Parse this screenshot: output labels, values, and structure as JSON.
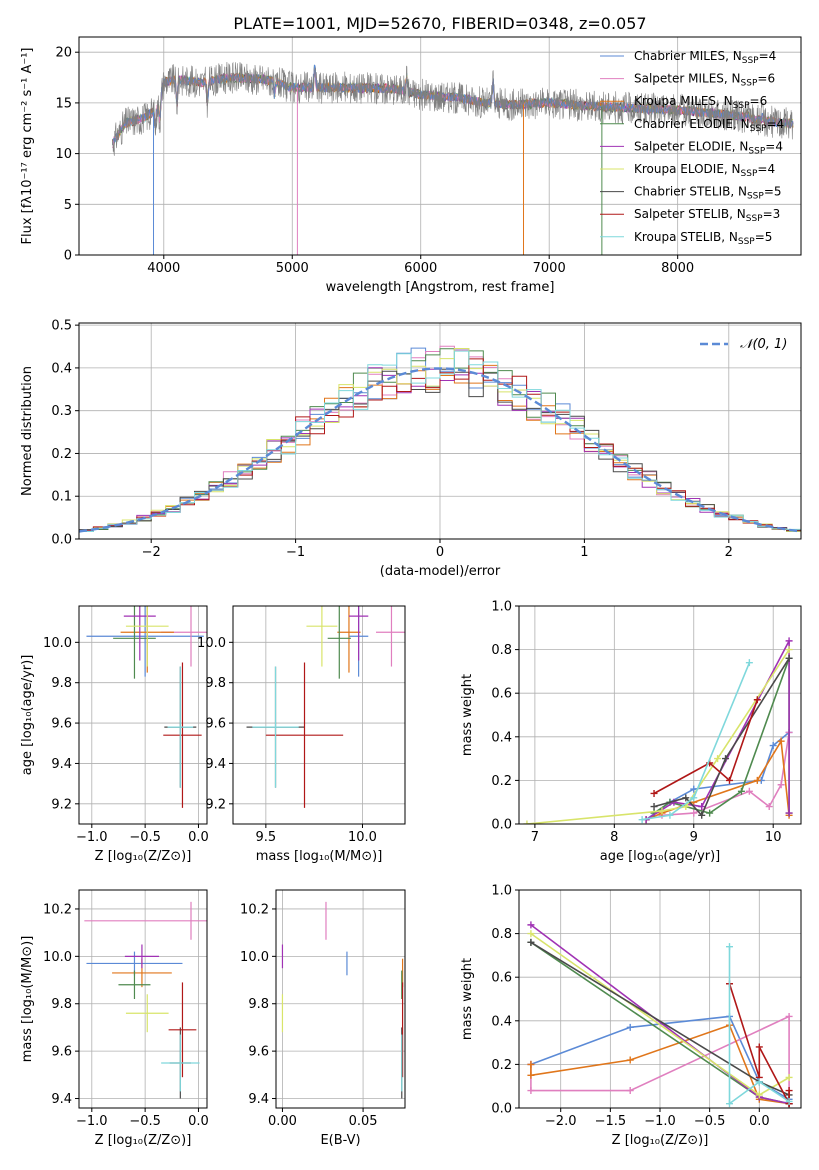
{
  "colors": [
    "#5b8ad6",
    "#e07fbf",
    "#e0761b",
    "#4f8a4f",
    "#a032b4",
    "#d8e46a",
    "#4a4a4a",
    "#b01818",
    "#7fd8dc"
  ],
  "spec_main_color": "#7f7f7f",
  "title": "PLATE=1001, MJD=52670, FIBERID=0348, z=0.057",
  "chart_data": [
    {
      "id": "spectrum",
      "type": "line",
      "xlabel": "wavelength [Angstrom, rest frame]",
      "ylabel": "Flux [fλ10⁻¹⁷ erg cm⁻² s⁻¹ A⁻¹]",
      "xlim": [
        3340,
        8960
      ],
      "ylim": [
        0,
        21.5
      ],
      "xticks": [
        4000,
        5000,
        6000,
        7000,
        8000
      ],
      "yticks": [
        0,
        5,
        10,
        15,
        20
      ],
      "legend_position": "top-right",
      "series": [
        {
          "name": "Chabrier MILES, N",
          "sub": "SSP",
          "suffix": "=4"
        },
        {
          "name": "Salpeter MILES, N",
          "sub": "SSP",
          "suffix": "=6"
        },
        {
          "name": "Kroupa MILES, N",
          "sub": "SSP",
          "suffix": "=6"
        },
        {
          "name": "Chabrier ELODIE, N",
          "sub": "SSP",
          "suffix": "=4"
        },
        {
          "name": "Salpeter ELODIE, N",
          "sub": "SSP",
          "suffix": "=4"
        },
        {
          "name": "Kroupa ELODIE, N",
          "sub": "SSP",
          "suffix": "=4"
        },
        {
          "name": "Chabrier STELIB, N",
          "sub": "SSP",
          "suffix": "=5"
        },
        {
          "name": "Salpeter STELIB, N",
          "sub": "SSP",
          "suffix": "=3"
        },
        {
          "name": "Kroupa STELIB, N",
          "sub": "SSP",
          "suffix": "=5"
        }
      ],
      "continuum": [
        [
          3600,
          11
        ],
        [
          3700,
          13
        ],
        [
          3850,
          13.5
        ],
        [
          3950,
          14.5
        ],
        [
          4000,
          17
        ],
        [
          4100,
          17.3
        ],
        [
          4300,
          17
        ],
        [
          4500,
          17.5
        ],
        [
          4800,
          17.3
        ],
        [
          5000,
          16.5
        ],
        [
          5200,
          16.5
        ],
        [
          5500,
          16.5
        ],
        [
          5800,
          16.4
        ],
        [
          6000,
          15.8
        ],
        [
          6300,
          15.5
        ],
        [
          6500,
          15
        ],
        [
          6700,
          14.8
        ],
        [
          7000,
          15
        ],
        [
          7300,
          14.7
        ],
        [
          7600,
          14.5
        ],
        [
          8000,
          14.3
        ],
        [
          8400,
          13.8
        ],
        [
          8800,
          13
        ]
      ],
      "features": [
        [
          3934,
          8.5
        ],
        [
          3969,
          7.8
        ],
        [
          4102,
          7.5
        ],
        [
          4340,
          8
        ],
        [
          4861,
          9
        ],
        [
          5175,
          14
        ],
        [
          5892,
          13
        ],
        [
          6563,
          14.2
        ],
        [
          8498,
          11
        ],
        [
          8542,
          11.8
        ],
        [
          8662,
          11.5
        ]
      ],
      "spikes": [
        [
          3920,
          0
        ],
        [
          5040,
          0
        ],
        [
          6800,
          0
        ],
        [
          7410,
          0
        ]
      ]
    },
    {
      "id": "residuals",
      "type": "line",
      "xlabel": "(data-model)/error",
      "ylabel": "Normed distribution",
      "xlim": [
        -2.5,
        2.5
      ],
      "ylim": [
        0,
        0.505
      ],
      "xticks": [
        -2,
        -1,
        0,
        1,
        2
      ],
      "xtick_labels": [
        "−2",
        "−1",
        "0",
        "1",
        "2"
      ],
      "yticks": [
        0,
        0.1,
        0.2,
        0.3,
        0.4,
        0.5
      ],
      "ytick_labels": [
        "0.0",
        "0.1",
        "0.2",
        "0.3",
        "0.4",
        "0.5"
      ],
      "legend_position": "top-right",
      "legend_label": "𝒩(0, 1)",
      "curve": {
        "mu": 0,
        "sigma": 1,
        "style": "dashed"
      },
      "bin_width": 0.1,
      "hist_seed": 7
    },
    {
      "id": "age-vs-Z",
      "type": "scatter",
      "xlabel": "Z [log₁₀(Z/Z⊙)]",
      "ylabel": "age  [log₁₀(age/yr)]",
      "xlim": [
        -1.12,
        0.08
      ],
      "ylim": [
        9.1,
        10.18
      ],
      "xticks": [
        -1.0,
        -0.5,
        0.0
      ],
      "xtick_labels": [
        "−1.0",
        "−0.5",
        "0.0"
      ],
      "yticks": [
        9.2,
        9.4,
        9.6,
        9.8,
        10.0
      ],
      "ytick_labels": [
        "9.2",
        "9.4",
        "9.6",
        "9.8",
        "10.0"
      ],
      "points": [
        {
          "x": -0.5,
          "y": 10.03,
          "xerr": 0.55,
          "yerr": 0.2,
          "c": 0
        },
        {
          "x": -0.07,
          "y": 10.05,
          "xerr": 0.28,
          "yerr": 0.17,
          "c": 1
        },
        {
          "x": -0.48,
          "y": 10.05,
          "xerr": 0.25,
          "yerr": 0.2,
          "c": 2
        },
        {
          "x": -0.6,
          "y": 10.02,
          "xerr": 0.2,
          "yerr": 0.2,
          "c": 3
        },
        {
          "x": -0.55,
          "y": 10.13,
          "xerr": 0.15,
          "yerr": 0.22,
          "c": 4
        },
        {
          "x": -0.48,
          "y": 10.08,
          "xerr": 0.2,
          "yerr": 0.2,
          "c": 5
        },
        {
          "x": -0.17,
          "y": 9.58,
          "xerr": 0.15,
          "yerr": 0.3,
          "c": 6
        },
        {
          "x": -0.15,
          "y": 9.54,
          "xerr": 0.18,
          "yerr": 0.36,
          "c": 7
        },
        {
          "x": -0.17,
          "y": 9.58,
          "xerr": 0.12,
          "yerr": 0.3,
          "c": 8
        }
      ]
    },
    {
      "id": "age-vs-mass",
      "type": "scatter",
      "xlabel": "mass [log₁₀(M/M⊙)]",
      "ylabel": "",
      "xlim": [
        9.33,
        10.22
      ],
      "ylim": [
        9.1,
        10.18
      ],
      "xticks": [
        9.5,
        10.0
      ],
      "xtick_labels": [
        "9.5",
        "10.0"
      ],
      "yticks": [
        9.2,
        9.4,
        9.6,
        9.8,
        10.0
      ],
      "ytick_labels": [
        "9.2",
        "9.4",
        "9.6",
        "9.8",
        "10.0"
      ],
      "points": [
        {
          "x": 9.98,
          "y": 10.03,
          "xerr": 0.05,
          "yerr": 0.2,
          "c": 0
        },
        {
          "x": 10.15,
          "y": 10.05,
          "xerr": 0.08,
          "yerr": 0.17,
          "c": 1
        },
        {
          "x": 9.93,
          "y": 10.05,
          "xerr": 0.06,
          "yerr": 0.2,
          "c": 2
        },
        {
          "x": 9.88,
          "y": 10.02,
          "xerr": 0.06,
          "yerr": 0.2,
          "c": 3
        },
        {
          "x": 9.98,
          "y": 10.13,
          "xerr": 0.05,
          "yerr": 0.22,
          "c": 4
        },
        {
          "x": 9.79,
          "y": 10.08,
          "xerr": 0.08,
          "yerr": 0.2,
          "c": 5
        },
        {
          "x": 9.55,
          "y": 9.58,
          "xerr": 0.15,
          "yerr": 0.3,
          "c": 6
        },
        {
          "x": 9.7,
          "y": 9.54,
          "xerr": 0.2,
          "yerr": 0.36,
          "c": 7
        },
        {
          "x": 9.55,
          "y": 9.58,
          "xerr": 0.12,
          "yerr": 0.3,
          "c": 8
        }
      ]
    },
    {
      "id": "mass-weight-vs-age",
      "type": "line",
      "xlabel": "age  [log₁₀(age/yr)]",
      "ylabel": "mass weight",
      "xlim": [
        6.8,
        10.35
      ],
      "ylim": [
        0,
        1.0
      ],
      "xticks": [
        7,
        8,
        9,
        10
      ],
      "xtick_labels": [
        "7",
        "8",
        "9",
        "10"
      ],
      "yticks": [
        0,
        0.2,
        0.4,
        0.6,
        0.8,
        1.0
      ],
      "ytick_labels": [
        "0.0",
        "0.2",
        "0.4",
        "0.6",
        "0.8",
        "1.0"
      ],
      "series": [
        {
          "c": 0,
          "x": [
            8.4,
            8.7,
            9.0,
            9.85,
            10.0,
            10.2
          ],
          "y": [
            0.02,
            0.1,
            0.16,
            0.2,
            0.36,
            0.42
          ]
        },
        {
          "c": 1,
          "x": [
            8.6,
            9.0,
            9.7,
            9.95,
            10.1,
            10.2
          ],
          "y": [
            0.04,
            0.05,
            0.15,
            0.08,
            0.18,
            0.42
          ]
        },
        {
          "c": 2,
          "x": [
            8.4,
            8.6,
            9.0,
            9.8,
            10.1,
            10.2
          ],
          "y": [
            0.02,
            0.05,
            0.1,
            0.2,
            0.38,
            0.04
          ]
        },
        {
          "c": 3,
          "x": [
            8.5,
            8.7,
            9.2,
            9.6,
            10.2,
            10.2
          ],
          "y": [
            0.05,
            0.1,
            0.05,
            0.15,
            0.76,
            0.05
          ]
        },
        {
          "c": 4,
          "x": [
            8.4,
            8.75,
            9.1,
            10.2,
            10.2
          ],
          "y": [
            0.02,
            0.1,
            0.08,
            0.84,
            0.05
          ]
        },
        {
          "c": 5,
          "x": [
            6.9,
            8.6,
            8.9,
            9.3,
            10.2
          ],
          "y": [
            0.0,
            0.06,
            0.08,
            0.3,
            0.8
          ]
        },
        {
          "c": 6,
          "x": [
            8.5,
            8.9,
            9.1,
            9.4,
            10.2
          ],
          "y": [
            0.08,
            0.12,
            0.04,
            0.3,
            0.76
          ]
        },
        {
          "c": 7,
          "x": [
            8.5,
            9.2,
            9.45,
            9.8
          ],
          "y": [
            0.14,
            0.28,
            0.2,
            0.57
          ]
        },
        {
          "c": 8,
          "x": [
            8.35,
            8.7,
            9.0,
            9.7
          ],
          "y": [
            0.02,
            0.04,
            0.12,
            0.74
          ]
        }
      ]
    },
    {
      "id": "mass-vs-Z",
      "type": "scatter",
      "xlabel": "Z [log₁₀(Z/Z⊙)]",
      "ylabel": "mass [log₁₀(M/M⊙)]",
      "xlim": [
        -1.12,
        0.08
      ],
      "ylim": [
        9.36,
        10.28
      ],
      "xticks": [
        -1.0,
        -0.5,
        0.0
      ],
      "xtick_labels": [
        "−1.0",
        "−0.5",
        "0.0"
      ],
      "yticks": [
        9.4,
        9.6,
        9.8,
        10.0,
        10.2
      ],
      "ytick_labels": [
        "9.4",
        "9.6",
        "9.8",
        "10.0",
        "10.2"
      ],
      "points": [
        {
          "x": -0.6,
          "y": 9.97,
          "xerr": 0.45,
          "yerr": 0.05,
          "c": 0
        },
        {
          "x": -0.07,
          "y": 10.15,
          "xerr": 1.0,
          "yerr": 0.08,
          "c": 1
        },
        {
          "x": -0.53,
          "y": 9.93,
          "xerr": 0.28,
          "yerr": 0.06,
          "c": 2
        },
        {
          "x": -0.6,
          "y": 9.88,
          "xerr": 0.15,
          "yerr": 0.06,
          "c": 3
        },
        {
          "x": -0.53,
          "y": 10.0,
          "xerr": 0.16,
          "yerr": 0.05,
          "c": 4
        },
        {
          "x": -0.48,
          "y": 9.76,
          "xerr": 0.2,
          "yerr": 0.08,
          "c": 5
        },
        {
          "x": -0.17,
          "y": 9.55,
          "xerr": 0.1,
          "yerr": 0.15,
          "c": 6
        },
        {
          "x": -0.15,
          "y": 9.69,
          "xerr": 0.13,
          "yerr": 0.2,
          "c": 7
        },
        {
          "x": -0.17,
          "y": 9.55,
          "xerr": 0.18,
          "yerr": 0.12,
          "c": 8
        }
      ]
    },
    {
      "id": "mass-vs-ebv",
      "type": "scatter",
      "xlabel": "E(B-V)",
      "ylabel": "",
      "xlim": [
        -0.004,
        0.076
      ],
      "ylim": [
        9.36,
        10.28
      ],
      "xticks": [
        0.0,
        0.05
      ],
      "xtick_labels": [
        "0.00",
        "0.05"
      ],
      "yticks": [
        9.4,
        9.6,
        9.8,
        10.0,
        10.2
      ],
      "ytick_labels": [
        "9.4",
        "9.6",
        "9.8",
        "10.0",
        "10.2"
      ],
      "points": [
        {
          "x": 0.04,
          "y": 9.97,
          "xerr": 0,
          "yerr": 0.05,
          "c": 0
        },
        {
          "x": 0.027,
          "y": 10.15,
          "xerr": 0,
          "yerr": 0.08,
          "c": 1
        },
        {
          "x": 0.0745,
          "y": 9.93,
          "xerr": 0,
          "yerr": 0.06,
          "c": 2
        },
        {
          "x": 0.074,
          "y": 9.88,
          "xerr": 0,
          "yerr": 0.06,
          "c": 3
        },
        {
          "x": 0.0,
          "y": 10.0,
          "xerr": 0,
          "yerr": 0.05,
          "c": 4
        },
        {
          "x": 0.0,
          "y": 9.76,
          "xerr": 0,
          "yerr": 0.08,
          "c": 5
        },
        {
          "x": 0.074,
          "y": 9.55,
          "xerr": 0,
          "yerr": 0.15,
          "c": 6
        },
        {
          "x": 0.0745,
          "y": 9.69,
          "xerr": 0,
          "yerr": 0.2,
          "c": 7
        },
        {
          "x": 0.074,
          "y": 9.55,
          "xerr": 0,
          "yerr": 0.12,
          "c": 8
        }
      ]
    },
    {
      "id": "mass-weight-vs-Z",
      "type": "line",
      "xlabel": "Z [log₁₀(Z/Z⊙)]",
      "ylabel": "mass weight",
      "xlim": [
        -2.42,
        0.42
      ],
      "ylim": [
        0,
        1.0
      ],
      "xticks": [
        -2.0,
        -1.5,
        -1.0,
        -0.5,
        0.0
      ],
      "xtick_labels": [
        "−2.0",
        "−1.5",
        "−1.0",
        "−0.5",
        "0.0"
      ],
      "yticks": [
        0,
        0.2,
        0.4,
        0.6,
        0.8,
        1.0
      ],
      "ytick_labels": [
        "0.0",
        "0.2",
        "0.4",
        "0.6",
        "0.8",
        "1.0"
      ],
      "series": [
        {
          "c": 0,
          "x": [
            -2.3,
            -1.3,
            -0.3,
            0.0,
            0.3
          ],
          "y": [
            0.2,
            0.37,
            0.42,
            0.12,
            0.04
          ]
        },
        {
          "c": 1,
          "x": [
            -2.3,
            -2.3,
            -1.3,
            0.3,
            0.3
          ],
          "y": [
            0.2,
            0.08,
            0.08,
            0.42,
            0.02
          ]
        },
        {
          "c": 2,
          "x": [
            -2.3,
            -2.3,
            -1.3,
            -0.3,
            0.0,
            0.3
          ],
          "y": [
            0.2,
            0.15,
            0.22,
            0.38,
            0.04,
            0.02
          ]
        },
        {
          "c": 3,
          "x": [
            -2.3,
            0.0,
            0.3
          ],
          "y": [
            0.76,
            0.05,
            0.02
          ]
        },
        {
          "c": 4,
          "x": [
            -2.3,
            0.0,
            0.3
          ],
          "y": [
            0.84,
            0.05,
            0.02
          ]
        },
        {
          "c": 5,
          "x": [
            -2.3,
            0.0,
            0.3
          ],
          "y": [
            0.8,
            0.06,
            0.14
          ]
        },
        {
          "c": 6,
          "x": [
            -2.3,
            0.0,
            0.3,
            0.3
          ],
          "y": [
            0.76,
            0.12,
            0.06,
            0.02
          ]
        },
        {
          "c": 7,
          "x": [
            -0.3,
            0.0,
            0.0,
            0.3,
            0.3
          ],
          "y": [
            0.57,
            0.14,
            0.28,
            0.02,
            0.08
          ]
        },
        {
          "c": 8,
          "x": [
            -0.3,
            -0.3,
            0.0,
            0.3
          ],
          "y": [
            0.74,
            0.02,
            0.12,
            0.03
          ]
        }
      ]
    }
  ]
}
